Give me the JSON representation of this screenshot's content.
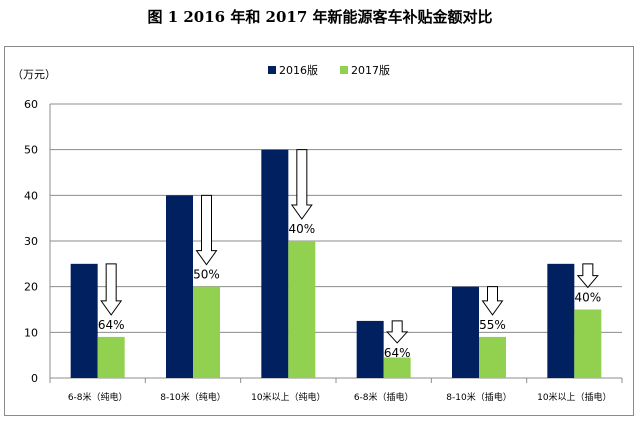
{
  "figure_title": "图 1   2016 年和 2017 年新能源客车补贴金额对比",
  "chart_data": {
    "type": "bar",
    "title": "图 1   2016 年和 2017 年新能源客车补贴金额对比",
    "ylabel": "（万元）",
    "xlabel": "",
    "ylim": [
      0,
      60
    ],
    "yticks": [
      0,
      10,
      20,
      30,
      40,
      50,
      60
    ],
    "grid": true,
    "legend_position": "top-center",
    "categories": [
      "6-8米（纯电）",
      "8-10米（纯电）",
      "10米以上（纯电）",
      "6-8米（插电）",
      "8-10米（插电）",
      "10米以上（插电）"
    ],
    "series": [
      {
        "name": "2016版",
        "color": "#002060",
        "values": [
          25,
          40,
          50,
          12.5,
          20,
          25
        ]
      },
      {
        "name": "2017版",
        "color": "#92D050",
        "values": [
          9,
          20,
          30,
          4.5,
          9,
          15
        ]
      }
    ],
    "annotations": [
      "64%",
      "50%",
      "40%",
      "64%",
      "55%",
      "40%"
    ]
  }
}
